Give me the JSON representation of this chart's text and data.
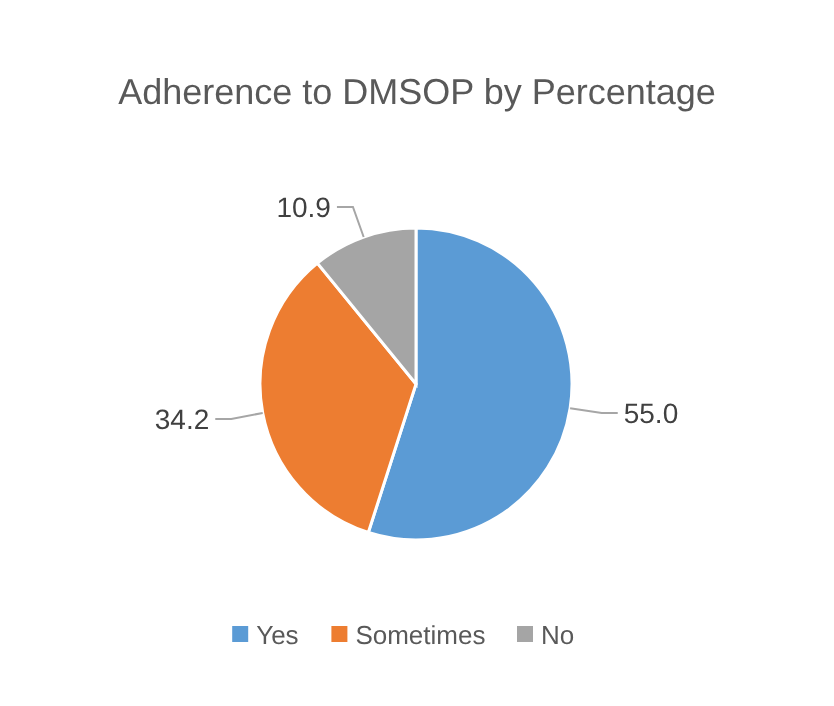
{
  "chart_data": {
    "type": "pie",
    "title": "Adherence to DMSOP by Percentage",
    "categories": [
      "Yes",
      "Sometimes",
      "No"
    ],
    "values": [
      55.0,
      34.2,
      10.9
    ],
    "value_labels": [
      "55.0",
      "34.2",
      "10.9"
    ],
    "colors": [
      "#5b9bd5",
      "#ed7d31",
      "#a5a5a5"
    ],
    "legend": "bottom"
  }
}
